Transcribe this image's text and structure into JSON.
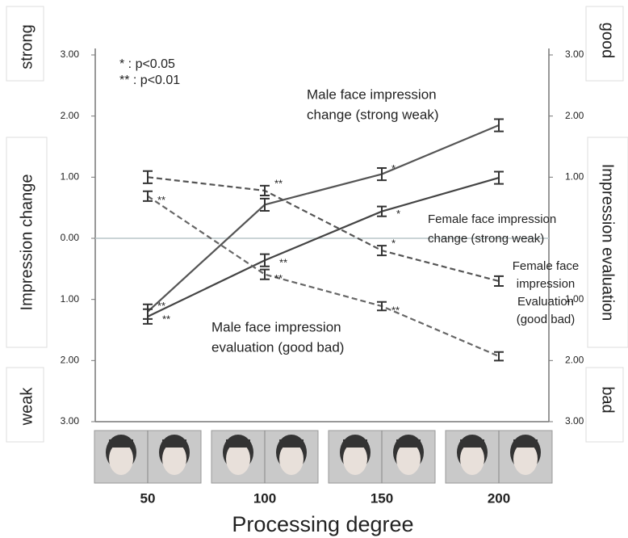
{
  "chart_data": {
    "type": "line",
    "categories": [
      "50",
      "100",
      "150",
      "200"
    ],
    "x_label": "Processing degree",
    "ylim": [
      -3,
      3
    ],
    "yticks": [
      {
        "value": 3,
        "label": "3.00"
      },
      {
        "value": 2,
        "label": "2.00"
      },
      {
        "value": 1,
        "label": "1.00"
      },
      {
        "value": 0,
        "label": "0.00"
      },
      {
        "value": -1,
        "label": "1.00"
      },
      {
        "value": -2,
        "label": "2.00"
      },
      {
        "value": -3,
        "label": "3.00"
      }
    ],
    "y2lim": [
      -3,
      3
    ],
    "y2ticks": [
      {
        "value": 3,
        "label": "3.00"
      },
      {
        "value": 2,
        "label": "2.00"
      },
      {
        "value": 1,
        "label": "1.00"
      },
      {
        "value": -1,
        "label": "1.00"
      },
      {
        "value": -2,
        "label": "2.00"
      },
      {
        "value": -3,
        "label": "3.00"
      }
    ],
    "left_labels": [
      "strong",
      "Impression change",
      "weak"
    ],
    "right_labels": [
      "good",
      "Impression evaluation",
      "bad"
    ],
    "significance_legend": [
      "*  : p<0.05",
      "** : p<0.01"
    ],
    "zero_line": true,
    "series": [
      {
        "label_lines": [
          "Male face impression",
          "change (strong weak)"
        ],
        "color": "#555555",
        "dashed": false,
        "values": [
          -1.2,
          0.55,
          1.05,
          1.85
        ],
        "errors": [
          0.12,
          0.1,
          0.1,
          0.1
        ],
        "sig": [
          "**",
          null,
          "*",
          null
        ]
      },
      {
        "label_lines": [
          "Female face impression",
          "change (strong weak)"
        ],
        "color": "#444444",
        "dashed": false,
        "values": [
          -1.28,
          -0.36,
          0.44,
          0.99
        ],
        "errors": [
          0.12,
          0.1,
          0.08,
          0.1
        ],
        "sig": [
          "**",
          "**",
          "*",
          null
        ]
      },
      {
        "label_lines": [
          "Female face",
          "impression",
          "Evaluation",
          "(good bad)"
        ],
        "color": "#555555",
        "dashed": true,
        "axis": "y2",
        "values": [
          1.0,
          0.78,
          -0.2,
          -0.7
        ],
        "errors": [
          0.1,
          0.08,
          0.08,
          0.08
        ],
        "sig": [
          null,
          "**",
          "*",
          null
        ]
      },
      {
        "label_lines": [
          "Male face impression",
          "evaluation (good bad)"
        ],
        "color": "#666666",
        "dashed": true,
        "axis": "y2",
        "values": [
          0.69,
          -0.59,
          -1.11,
          -1.93
        ],
        "errors": [
          0.08,
          0.08,
          0.07,
          0.07
        ],
        "sig": [
          "**",
          "**",
          "**",
          null
        ]
      }
    ]
  }
}
